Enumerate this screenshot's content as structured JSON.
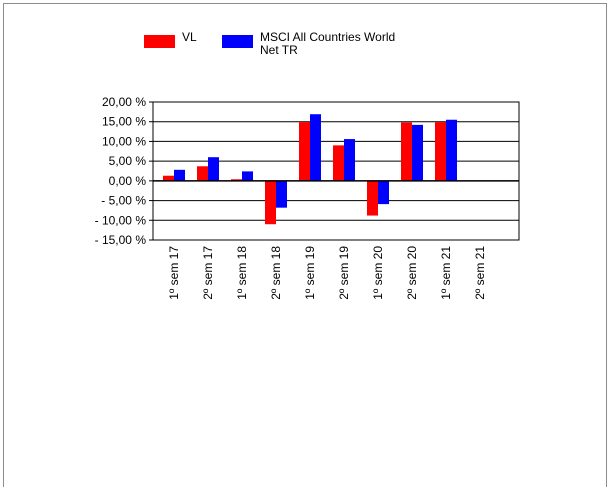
{
  "chart_data": {
    "type": "bar",
    "categories": [
      "1º sem 17",
      "2º sem 17",
      "1º sem 18",
      "2º sem 18",
      "1º sem 19",
      "2º sem 19",
      "1º sem 20",
      "2º sem 20",
      "1º sem 21",
      "2º sem 21"
    ],
    "series": [
      {
        "name": "VL",
        "color": "#ff0000",
        "values": [
          1.3,
          3.7,
          0.4,
          -11.0,
          14.9,
          9.0,
          -8.8,
          14.8,
          14.9,
          null
        ]
      },
      {
        "name": "MSCI All Countries World Net TR",
        "color": "#0000ff",
        "values": [
          2.8,
          6.0,
          2.4,
          -6.8,
          16.9,
          10.6,
          -5.9,
          14.2,
          15.5,
          null
        ]
      }
    ],
    "ylim": [
      -15,
      20
    ],
    "yticks": [
      20,
      15,
      10,
      5,
      0,
      -5,
      -10,
      -15
    ],
    "ytick_labels": [
      "20,00 %",
      "15,00 %",
      "10,00 %",
      "5,00 %",
      "0,00 %",
      "- 5,00 %",
      "- 10,00 %",
      "- 15,00 %"
    ],
    "grid": true,
    "legend": "top",
    "title": "",
    "xlabel": "",
    "ylabel": ""
  },
  "legend": {
    "items": [
      {
        "label": "VL",
        "color": "#ff0000"
      },
      {
        "label_line1": "MSCI All Countries World",
        "label_line2": "Net TR",
        "color": "#0000ff"
      }
    ]
  }
}
